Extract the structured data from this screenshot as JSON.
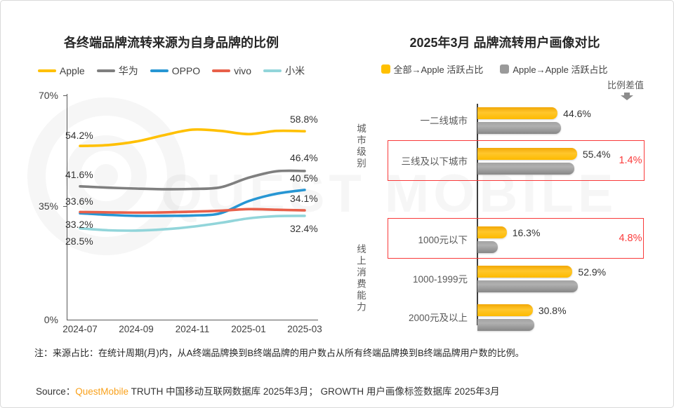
{
  "watermark": {
    "text": "QUEST MOBILE"
  },
  "chart_data": [
    {
      "type": "line",
      "title": "各终端品牌流转来源为自身品牌的比例",
      "x": [
        "2024-07",
        "2024-08",
        "2024-09",
        "2024-10",
        "2024-11",
        "2024-12",
        "2025-01",
        "2025-02",
        "2025-03"
      ],
      "x_tick_labels": [
        "2024-07",
        "2024-09",
        "2024-11",
        "2025-01",
        "2025-03"
      ],
      "y_tick_labels": [
        "70%",
        "35%",
        "0%"
      ],
      "ylim": [
        0,
        70
      ],
      "grid": false,
      "legend_position": "top",
      "series": [
        {
          "name": "Apple",
          "color": "#FFC000",
          "values": [
            54.2,
            54.5,
            55.6,
            57.6,
            59.3,
            58.9,
            57.9,
            58.9,
            58.8
          ]
        },
        {
          "name": "华为",
          "color": "#7F7F7F",
          "values": [
            41.6,
            41.2,
            40.9,
            40.7,
            40.8,
            41.3,
            44.3,
            46.3,
            46.4
          ]
        },
        {
          "name": "OPPO",
          "color": "#2796D3",
          "values": [
            33.2,
            32.7,
            32.4,
            32.4,
            32.5,
            33.2,
            37.0,
            39.3,
            40.5
          ]
        },
        {
          "name": "vivo",
          "color": "#E8604A",
          "values": [
            33.6,
            33.5,
            33.4,
            33.5,
            33.7,
            34.0,
            34.5,
            34.3,
            34.1
          ]
        },
        {
          "name": "小米",
          "color": "#92D5DA",
          "values": [
            28.5,
            27.9,
            27.8,
            28.2,
            29.0,
            30.2,
            31.6,
            32.3,
            32.4
          ]
        }
      ],
      "first_labels": [
        "54.2%",
        "41.6%",
        "33.6%",
        "33.2%",
        "28.5%"
      ],
      "last_labels": [
        "58.8%",
        "46.4%",
        "40.5%",
        "34.1%",
        "32.4%"
      ]
    },
    {
      "type": "bar",
      "orientation": "horizontal",
      "title": "2025年3月 品牌流转用户画像对比",
      "diff_header": "比例差值",
      "categories": [
        "一二线城市",
        "三线及以下城市",
        "1000元以下",
        "1000-1999元",
        "2000元及以上"
      ],
      "groups": [
        {
          "name": "城市级别",
          "rows": [
            "一二线城市",
            "三线及以下城市"
          ]
        },
        {
          "name": "线上消费能力",
          "rows": [
            "1000元以下",
            "1000-1999元",
            "2000元及以上"
          ]
        }
      ],
      "series": [
        {
          "name": "全部→Apple 活跃占比",
          "color": "#FFC000",
          "values": [
            44.6,
            55.4,
            16.3,
            52.9,
            30.8
          ],
          "labels": [
            "44.6%",
            "55.4%",
            "16.3%",
            "52.9%",
            "30.8%"
          ]
        },
        {
          "name": "Apple→Apple 活跃占比",
          "color": "#9a9a9a",
          "values": [
            46.5,
            54.0,
            11.5,
            56.0,
            31.5
          ],
          "labels": [
            "",
            "",
            "",
            "",
            ""
          ]
        }
      ],
      "highlights": [
        {
          "category": "三线及以下城市",
          "diff_label": "1.4%"
        },
        {
          "category": "1000元以下",
          "diff_label": "4.8%"
        }
      ]
    }
  ],
  "note": "注：来源占比：在统计周期(月)内，从A终端品牌换到B终端品牌的用户数占从所有终端品牌换到B终端品牌用户数的比例。",
  "source": {
    "prefix": "Source：",
    "brand": "QuestMobile",
    "rest": " TRUTH 中国移动互联网数据库 2025年3月； GROWTH 用户画像标签数据库 2025年3月"
  }
}
